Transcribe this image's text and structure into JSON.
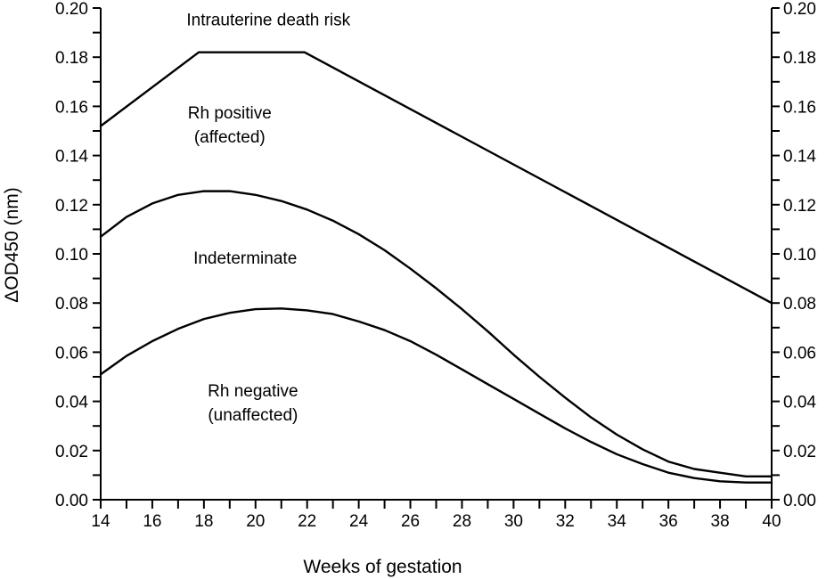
{
  "chart_data": {
    "type": "line",
    "xlabel": "Weeks of gestation",
    "ylabel": "ΔOD450 (nm)",
    "xlim": [
      14,
      40
    ],
    "ylim": [
      0,
      0.2
    ],
    "x_ticks": [
      14,
      16,
      18,
      20,
      22,
      24,
      26,
      28,
      30,
      32,
      34,
      36,
      38,
      40
    ],
    "x_tick_labels": [
      "14",
      "16",
      "18",
      "20",
      "22",
      "24",
      "26",
      "28",
      "30",
      "32",
      "34",
      "36",
      "38",
      "40"
    ],
    "y_ticks": [
      0,
      0.02,
      0.04,
      0.06,
      0.08,
      0.1,
      0.12,
      0.14,
      0.16,
      0.18,
      0.2
    ],
    "y_tick_labels": [
      "0.00",
      "0.02",
      "0.04",
      "0.06",
      "0.08",
      "0.10",
      "0.12",
      "0.14",
      "0.16",
      "0.18",
      "0.20"
    ],
    "secondary_y_axis": true,
    "grid": false,
    "series": [
      {
        "x": [
          14,
          17.8,
          21.9,
          40
        ],
        "y": [
          0.152,
          0.182,
          0.182,
          0.08
        ]
      },
      {
        "x": [
          14,
          15,
          16,
          17,
          18,
          19,
          20,
          21,
          22,
          23,
          24,
          25,
          26,
          27,
          28,
          29,
          30,
          31,
          32,
          33,
          34,
          35,
          36,
          37,
          38,
          39,
          40
        ],
        "y": [
          0.107,
          0.115,
          0.1205,
          0.124,
          0.1255,
          0.1255,
          0.124,
          0.1215,
          0.118,
          0.1135,
          0.108,
          0.1015,
          0.094,
          0.086,
          0.0775,
          0.0685,
          0.059,
          0.05,
          0.0415,
          0.0335,
          0.0265,
          0.0205,
          0.0155,
          0.0125,
          0.011,
          0.0095,
          0.0095
        ]
      },
      {
        "x": [
          14,
          15,
          16,
          17,
          18,
          19,
          20,
          21,
          22,
          23,
          24,
          25,
          26,
          27,
          28,
          29,
          30,
          31,
          32,
          33,
          34,
          35,
          36,
          37,
          38,
          39,
          40
        ],
        "y": [
          0.051,
          0.0585,
          0.0645,
          0.0695,
          0.0735,
          0.076,
          0.0775,
          0.0778,
          0.077,
          0.0755,
          0.0725,
          0.069,
          0.0645,
          0.059,
          0.053,
          0.047,
          0.041,
          0.035,
          0.029,
          0.0235,
          0.0185,
          0.0145,
          0.011,
          0.0088,
          0.0075,
          0.007,
          0.007
        ]
      }
    ],
    "annotations": [
      {
        "lines": [
          "Intrauterine death risk"
        ],
        "x": 20.5,
        "y": 0.193
      },
      {
        "lines": [
          "Rh positive",
          "(affected)"
        ],
        "x": 19,
        "y": 0.155
      },
      {
        "lines": [
          "Indeterminate"
        ],
        "x": 19.6,
        "y": 0.096
      },
      {
        "lines": [
          "Rh negative",
          "(unaffected)"
        ],
        "x": 19.9,
        "y": 0.042
      }
    ]
  }
}
